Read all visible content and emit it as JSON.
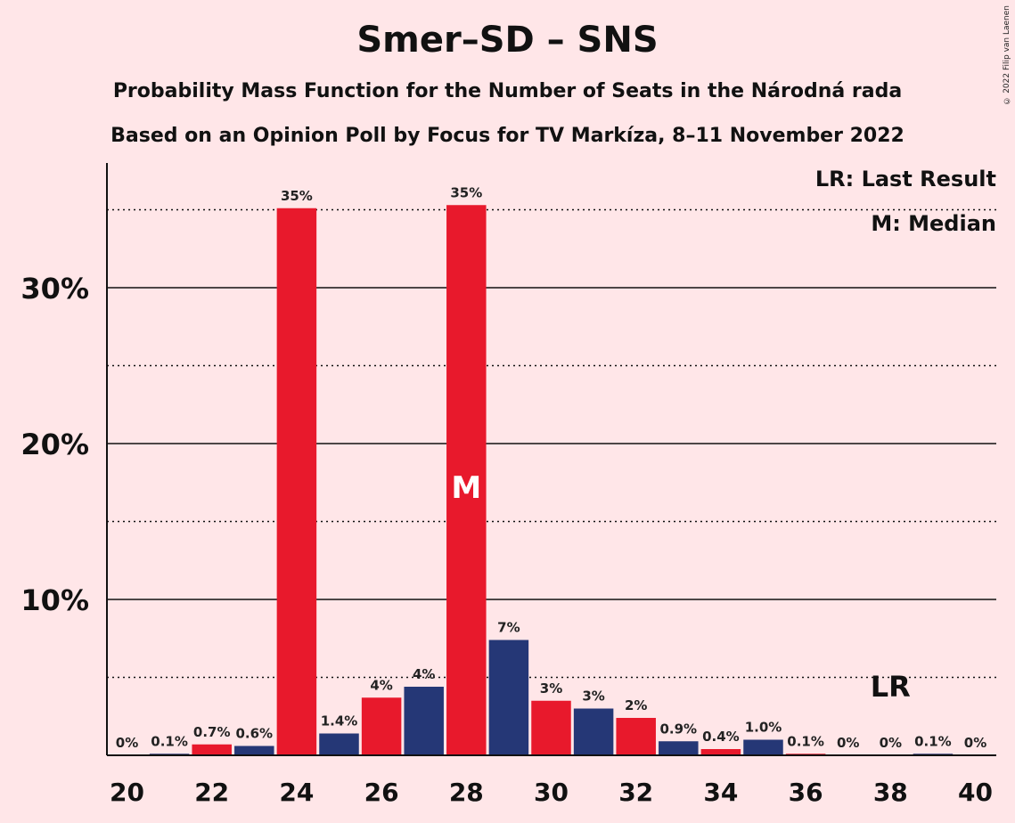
{
  "title": "Smer–SD – SNS",
  "subtitle1": "Probability Mass Function for the Number of Seats in the Národná rada",
  "subtitle2": "Based on an Opinion Poll by Focus for TV Markíza, 8–11 November 2022",
  "copyright": "© 2022 Filip van Laenen",
  "legend": {
    "lr": "LR: Last Result",
    "m": "M: Median"
  },
  "colors": {
    "background": "#ffe6e8",
    "red": "#e8192c",
    "blue": "#253776"
  },
  "chart_data": {
    "type": "bar",
    "x": [
      20,
      21,
      22,
      23,
      24,
      25,
      26,
      27,
      28,
      29,
      30,
      31,
      32,
      33,
      34,
      35,
      36,
      37,
      38,
      39,
      40
    ],
    "values": [
      0,
      0.1,
      0.7,
      0.6,
      35.1,
      1.4,
      3.7,
      4.4,
      35.3,
      7.4,
      3.5,
      3.0,
      2.4,
      0.9,
      0.4,
      1.0,
      0.1,
      0,
      0,
      0.1,
      0
    ],
    "labels": [
      "0%",
      "0.1%",
      "0.7%",
      "0.6%",
      "35%",
      "1.4%",
      "4%",
      "4%",
      "35%",
      "7%",
      "3%",
      "3%",
      "2%",
      "0.9%",
      "0.4%",
      "1.0%",
      "0.1%",
      "0%",
      "0%",
      "0.1%",
      "0%"
    ],
    "bar_colors": [
      "red",
      "blue",
      "red",
      "blue",
      "red",
      "blue",
      "red",
      "blue",
      "red",
      "blue",
      "red",
      "blue",
      "red",
      "blue",
      "red",
      "blue",
      "red",
      "blue",
      "red",
      "blue",
      "red"
    ],
    "ylim": [
      0,
      38
    ],
    "yticks": [
      10,
      20,
      30
    ],
    "ytick_labels": [
      "10%",
      "20%",
      "30%"
    ],
    "dotted_lines": [
      5,
      15,
      25,
      35
    ],
    "xticks": [
      20,
      22,
      24,
      26,
      28,
      30,
      32,
      34,
      36,
      38,
      40
    ],
    "median": 28,
    "median_label": "M",
    "last_result": 38,
    "last_result_label": "LR"
  }
}
